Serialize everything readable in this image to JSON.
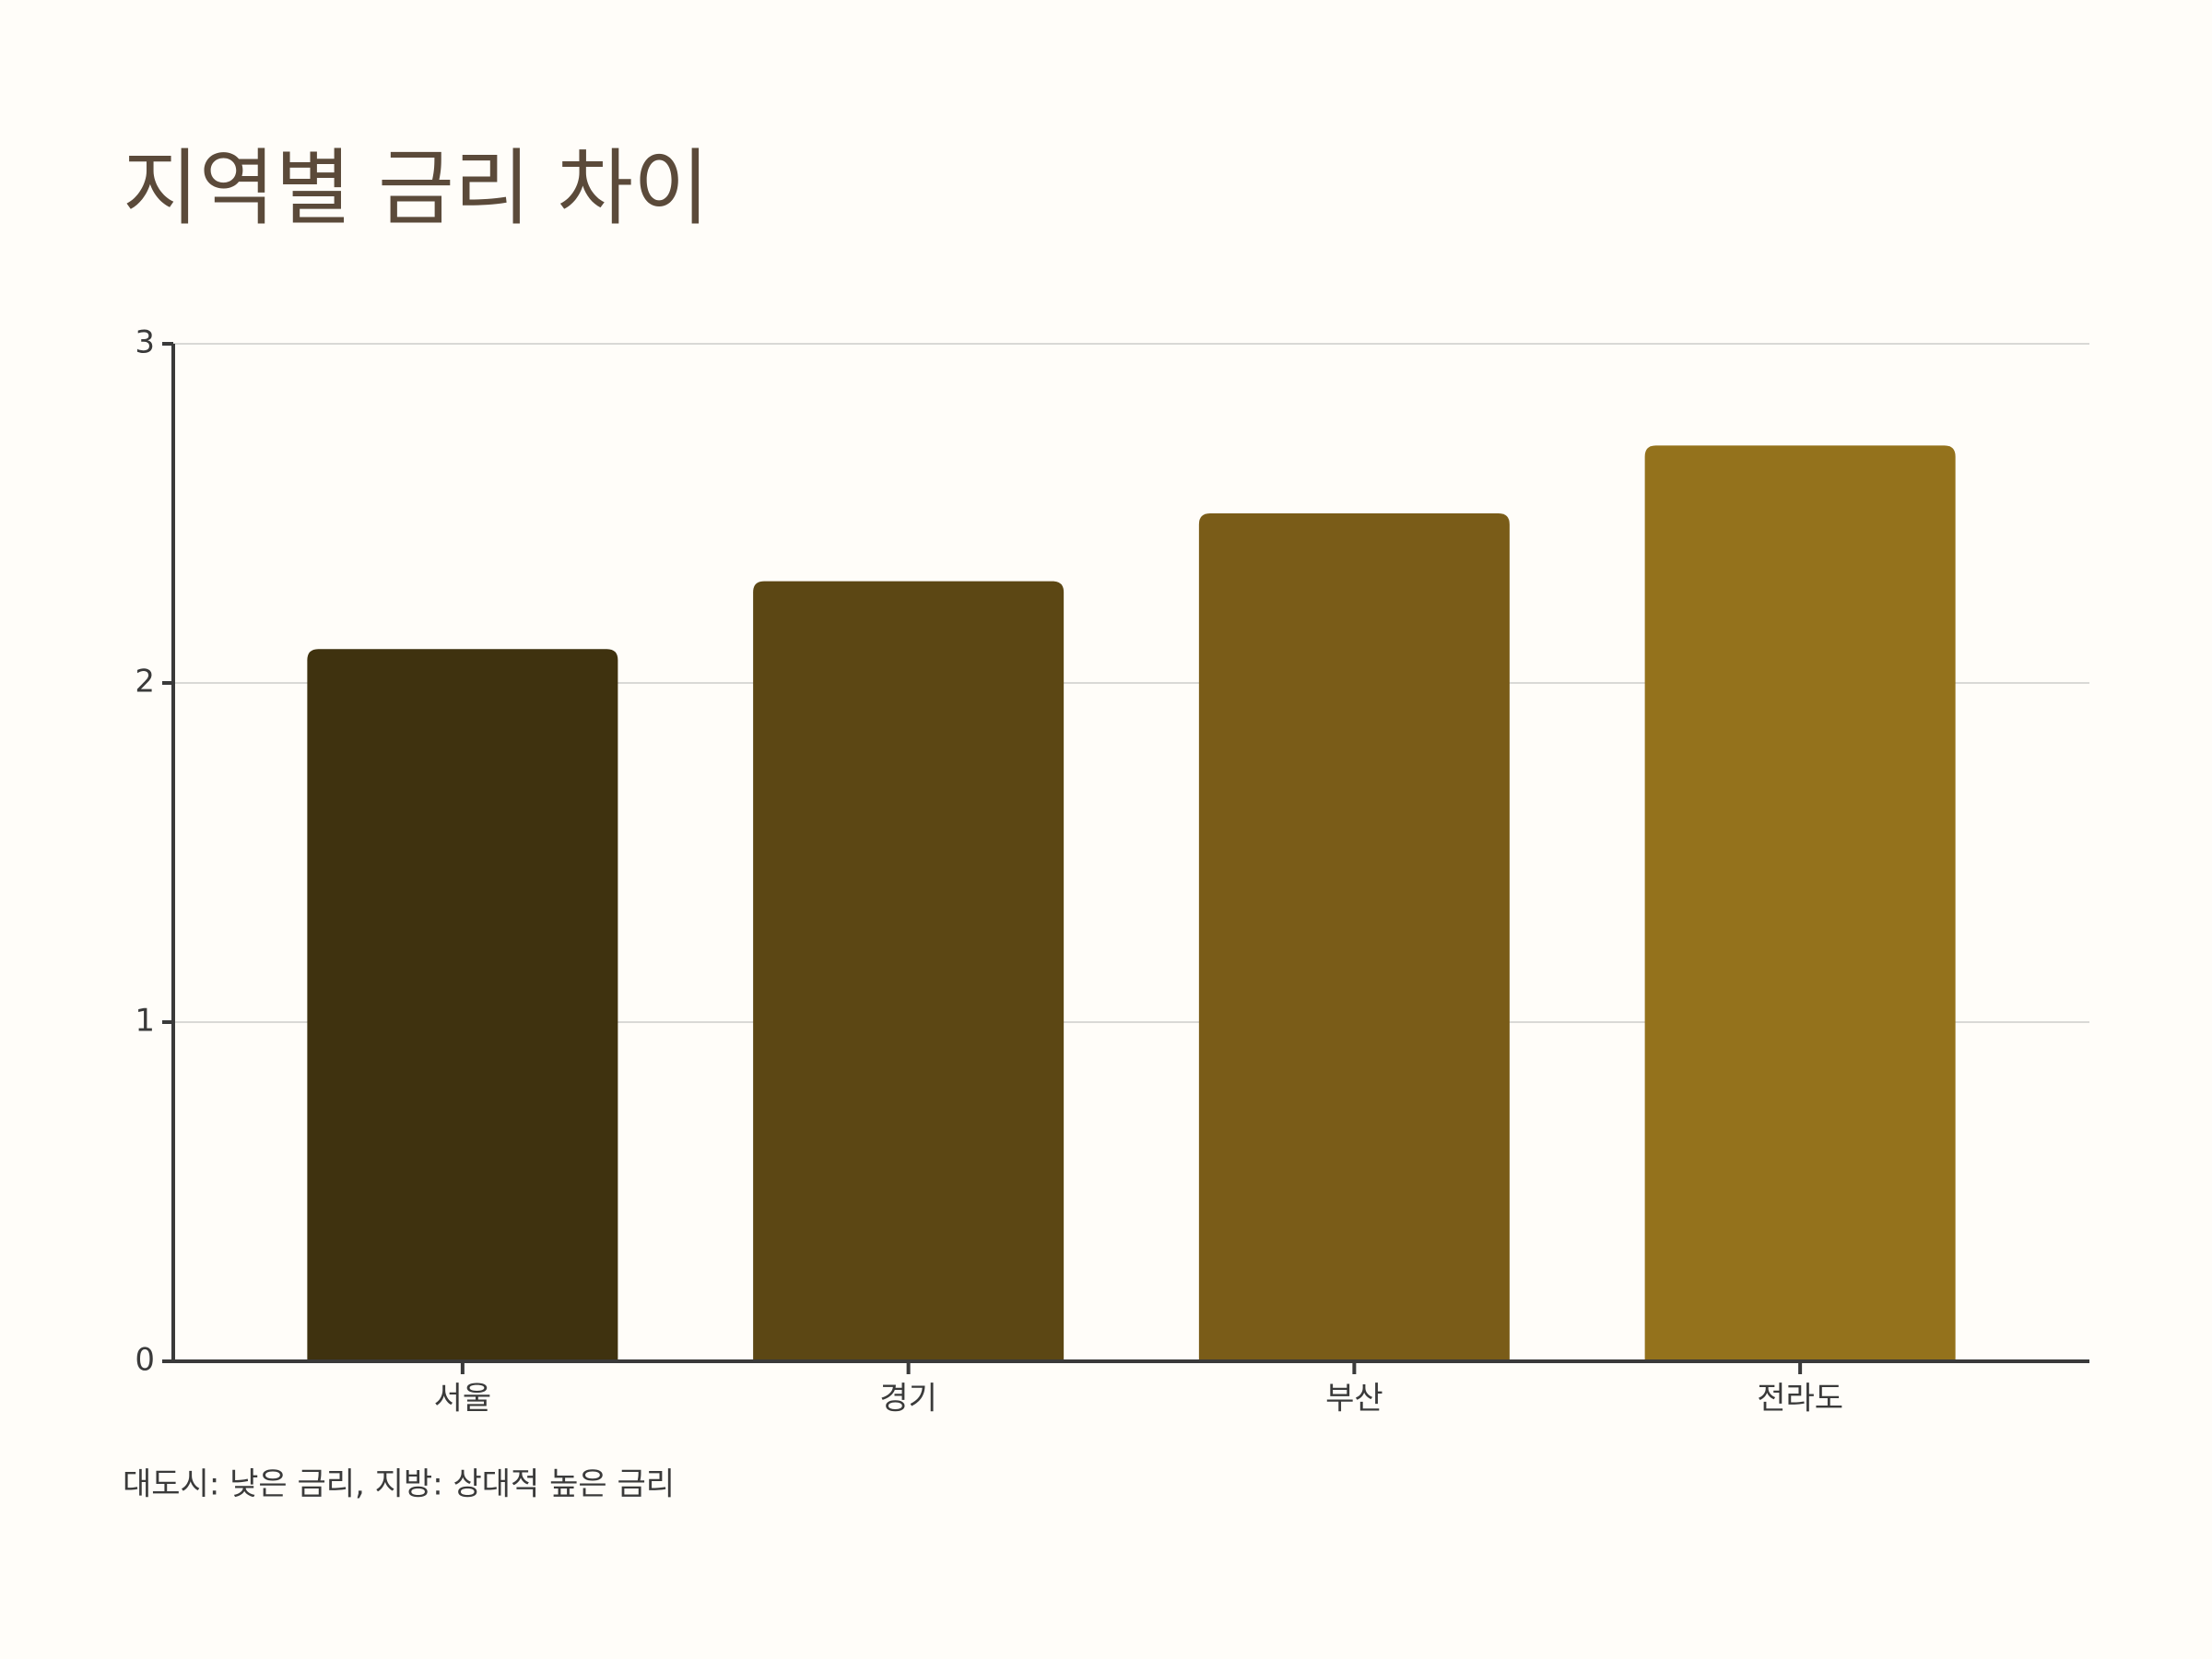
{
  "chart_data": {
    "type": "bar",
    "title": "지역별 금리 차이",
    "categories": [
      "서울",
      "경기",
      "부산",
      "전라도"
    ],
    "values": [
      2.1,
      2.3,
      2.5,
      2.7
    ],
    "colors": [
      "#3f320f",
      "#5c4714",
      "#7a5c18",
      "#94721c"
    ],
    "ylim": [
      0,
      3
    ],
    "yticks": [
      0,
      1,
      2,
      3
    ],
    "grid": true,
    "footnote": "대도시: 낮은 금리, 지방: 상대적 높은 금리"
  }
}
